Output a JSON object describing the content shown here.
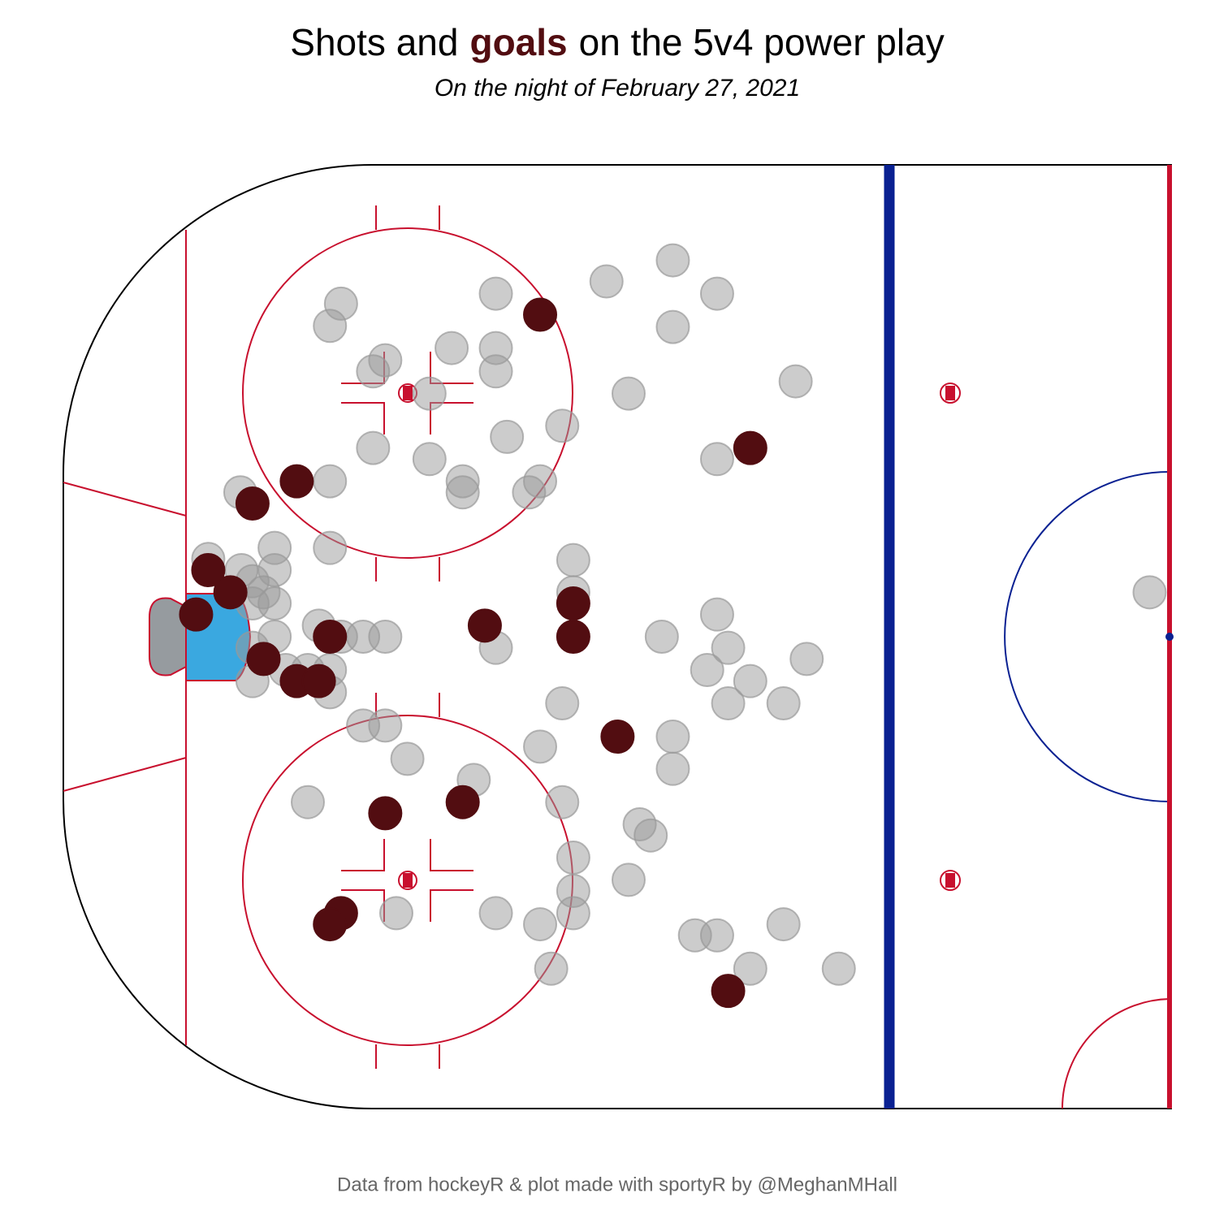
{
  "chart_data": {
    "type": "scatter",
    "title": {
      "before": "Shots and",
      "highlight": "goals",
      "after": "on the 5v4 power play"
    },
    "subtitle": "On the night of February 27, 2021",
    "caption": "Data from hockeyR & plot made with sportyR by @MeghanMHall",
    "xlim": [
      100,
      0
    ],
    "ylim": [
      -42.5,
      42.5
    ],
    "series": [
      {
        "color": "#999999",
        "opacity": 0.5,
        "x": [
          44.9,
          50.9,
          60.9,
          40.9,
          74.9,
          75.9,
          44.9,
          64.9,
          60.9,
          70.9,
          72.0,
          60.9,
          66.9,
          48.9,
          33.8,
          54.9,
          59.9,
          72.0,
          66.9,
          40.9,
          63.9,
          56.9,
          75.9,
          84.0,
          63.9,
          57.9,
          80.9,
          75.9,
          53.9,
          86.9,
          83.9,
          80.9,
          82.9,
          81.9,
          53.9,
          80.9,
          82.9,
          40.9,
          76.9,
          74.9,
          72.9,
          70.9,
          80.9,
          45.9,
          60.9,
          39.9,
          82.9,
          32.8,
          75.9,
          79.9,
          77.9,
          41.8,
          82.9,
          37.9,
          75.9,
          39.9,
          54.9,
          34.9,
          72.9,
          70.9,
          56.9,
          44.9,
          68.9,
          44.9,
          62.9,
          77.9,
          54.9,
          47.9,
          46.9,
          53.9,
          48.9,
          53.9,
          69.9,
          60.9,
          53.9,
          56.9,
          42.9,
          40.9,
          34.9,
          55.9,
          37.9,
          29.9,
          1.8
        ],
        "y": [
          33.9,
          32.0,
          30.9,
          30.9,
          30.0,
          28.0,
          27.9,
          26.0,
          26.0,
          24.9,
          23.9,
          23.9,
          21.9,
          21.9,
          23.0,
          19.0,
          18.0,
          17.0,
          16.0,
          16.0,
          14.0,
          14.0,
          14.0,
          13.0,
          13.0,
          13.0,
          8.0,
          8.0,
          6.9,
          7.0,
          6.0,
          6.0,
          5.0,
          4.0,
          4.0,
          3.0,
          3.0,
          2.0,
          1.0,
          0,
          0,
          0,
          0,
          0,
          -1.0,
          -1.0,
          -1.0,
          -2.0,
          -3.0,
          -3.0,
          -3.0,
          -3.0,
          -4.0,
          -4.0,
          -5.0,
          -6.0,
          -6.0,
          -6.0,
          -8.0,
          -8.0,
          -9.9,
          -9.0,
          -11.0,
          -11.9,
          -12.9,
          -14.9,
          -14.9,
          -16.9,
          -17.9,
          -19.9,
          -21.9,
          -22.9,
          -24.9,
          -24.9,
          -24.9,
          -25.9,
          -26.9,
          -26.9,
          -25.9,
          -29.9,
          -29.9,
          -29.9,
          4.0
        ]
      },
      {
        "color": "#520d11",
        "opacity": 1,
        "x": [
          56.9,
          37.9,
          78.9,
          82.9,
          86.9,
          84.9,
          88.0,
          53.9,
          61.9,
          75.9,
          53.9,
          81.9,
          78.9,
          76.9,
          49.9,
          63.9,
          70.9,
          74.9,
          75.9,
          39.9
        ],
        "y": [
          29.0,
          17.0,
          14.0,
          12.0,
          6.0,
          4.0,
          2.0,
          3.0,
          1.0,
          0,
          0,
          -2.0,
          -4.0,
          -4.0,
          -9.0,
          -14.9,
          -15.9,
          -24.9,
          -25.9,
          -31.9
        ]
      }
    ]
  }
}
